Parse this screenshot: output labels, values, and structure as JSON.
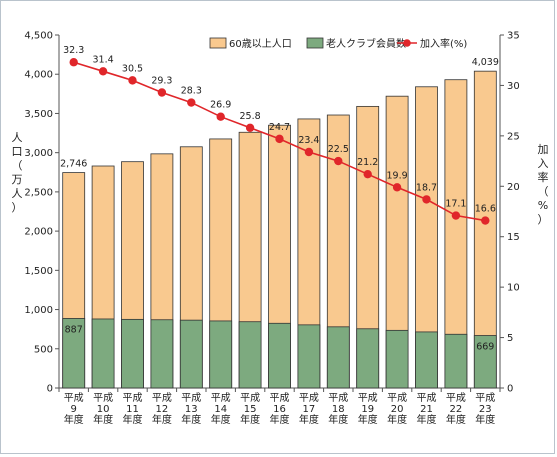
{
  "chart_data": {
    "type": "bar",
    "stacked": true,
    "categories": [
      [
        "平成",
        "9",
        "年度"
      ],
      [
        "平成",
        "10",
        "年度"
      ],
      [
        "平成",
        "11",
        "年度"
      ],
      [
        "平成",
        "12",
        "年度"
      ],
      [
        "平成",
        "13",
        "年度"
      ],
      [
        "平成",
        "14",
        "年度"
      ],
      [
        "平成",
        "15",
        "年度"
      ],
      [
        "平成",
        "16",
        "年度"
      ],
      [
        "平成",
        "17",
        "年度"
      ],
      [
        "平成",
        "18",
        "年度"
      ],
      [
        "平成",
        "19",
        "年度"
      ],
      [
        "平成",
        "20",
        "年度"
      ],
      [
        "平成",
        "21",
        "年度"
      ],
      [
        "平成",
        "22",
        "年度"
      ],
      [
        "平成",
        "23",
        "年度"
      ]
    ],
    "series": [
      {
        "name": "60歳以上人口",
        "kind": "bar",
        "axis": "left",
        "color": "#f9c98f",
        "values": [
          2746,
          2830,
          2885,
          2985,
          3075,
          3175,
          3260,
          3350,
          3430,
          3480,
          3590,
          3720,
          3840,
          3930,
          4039
        ]
      },
      {
        "name": "老人クラブ会員数",
        "kind": "bar",
        "axis": "left",
        "color": "#7daa7f",
        "values": [
          887,
          880,
          875,
          870,
          865,
          855,
          845,
          825,
          805,
          780,
          755,
          735,
          715,
          685,
          669
        ]
      },
      {
        "name": "加入率(%)",
        "kind": "line",
        "axis": "right",
        "color": "#e0262a",
        "values": [
          32.3,
          31.4,
          30.5,
          29.3,
          28.3,
          26.9,
          25.8,
          24.7,
          23.4,
          22.5,
          21.2,
          19.9,
          18.7,
          17.1,
          16.6
        ]
      }
    ],
    "bar_labels": [
      {
        "series": 0,
        "index": 0,
        "text": "2,746"
      },
      {
        "series": 0,
        "index": 14,
        "text": "4,039"
      },
      {
        "series": 1,
        "index": 0,
        "text": "887"
      },
      {
        "series": 1,
        "index": 14,
        "text": "669"
      }
    ],
    "line_labels": [
      "32.3",
      "31.4",
      "30.5",
      "29.3",
      "28.3",
      "26.9",
      "25.8",
      "24.7",
      "23.4",
      "22.5",
      "21.2",
      "19.9",
      "18.7",
      "17.1",
      "16.6"
    ],
    "y_left": {
      "label": "人口（万人）",
      "min": 0,
      "max": 4500,
      "ticks": [
        "0",
        "500",
        "1,000",
        "1,500",
        "2,000",
        "2,500",
        "3,000",
        "3,500",
        "4,000",
        "4,500"
      ]
    },
    "y_right": {
      "label": "加入率（%）",
      "min": 0,
      "max": 35,
      "ticks": [
        "0",
        "5",
        "10",
        "15",
        "20",
        "25",
        "30",
        "35"
      ]
    },
    "legend_placement": "top-right",
    "grid": false
  }
}
